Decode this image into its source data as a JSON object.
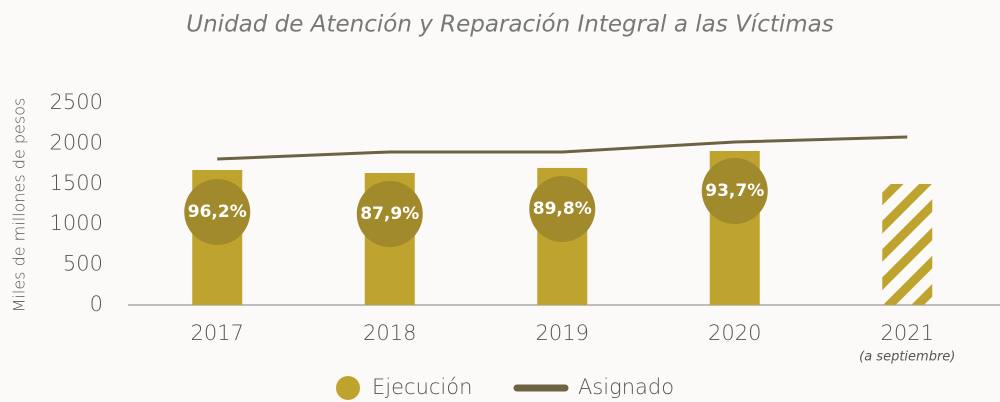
{
  "chart_data": {
    "type": "bar_line",
    "title": "Unidad de Atención y Reparación Integral a las Víctimas",
    "y_label": "Miles de millones de pesos",
    "categories": [
      "2017",
      "2018",
      "2019",
      "2020",
      "2021"
    ],
    "category_notes": [
      null,
      null,
      null,
      null,
      "(a septiembre)"
    ],
    "series": [
      {
        "name": "Ejecución",
        "type": "bar",
        "color": "#bea42e",
        "values": [
          1671,
          1634,
          1696,
          1906,
          1498
        ],
        "hatched": [
          false,
          false,
          false,
          false,
          true
        ]
      },
      {
        "name": "Asignado",
        "type": "line",
        "color": "#6d6342",
        "values": [
          1807,
          1894,
          1894,
          2017,
          2079
        ]
      }
    ],
    "rate_labels": [
      "96,2%",
      "87,9%",
      "89,8%",
      "93,7%",
      null
    ],
    "rate_color": "#a18a2b",
    "ylim": [
      0,
      2500
    ],
    "yticks": [
      0,
      500,
      1000,
      1500,
      2000,
      2500
    ]
  }
}
